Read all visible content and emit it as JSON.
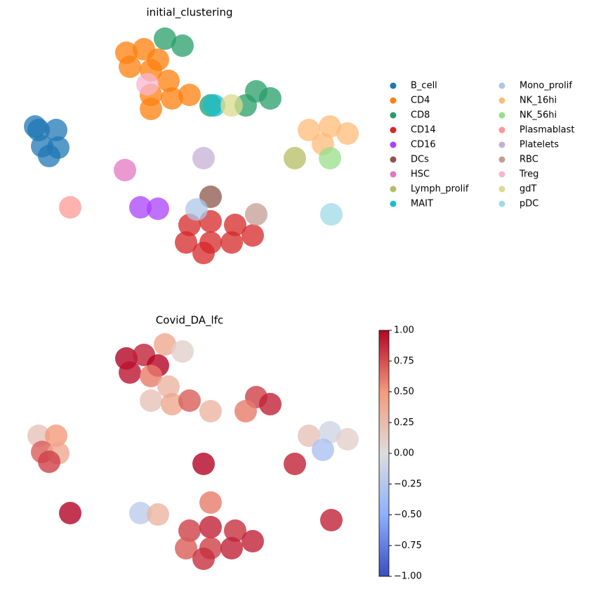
{
  "chart_data": [
    {
      "type": "scatter",
      "title": "initial_clustering",
      "xlim": [
        0,
        500
      ],
      "ylim": [
        0,
        345
      ],
      "legend": "right",
      "series": [
        {
          "name": "B_cell",
          "color": "#1f77b4",
          "x": [
            35,
            60,
            40,
            63,
            50,
            30
          ],
          "y": [
            195,
            195,
            172,
            170,
            158,
            200
          ]
        },
        {
          "name": "CD4",
          "color": "#ff7f0e",
          "x": [
            160,
            185,
            205,
            165,
            195,
            220,
            195,
            225,
            195,
            250
          ],
          "y": [
            305,
            310,
            295,
            285,
            280,
            265,
            245,
            240,
            225,
            245
          ]
        },
        {
          "name": "CD8",
          "color": "#279e68",
          "x": [
            215,
            240,
            345,
            365,
            330,
            280
          ],
          "y": [
            325,
            315,
            250,
            240,
            230,
            230
          ]
        },
        {
          "name": "CD14",
          "color": "#d62728",
          "x": [
            250,
            280,
            315,
            340,
            245,
            280,
            310,
            270
          ],
          "y": [
            60,
            65,
            60,
            45,
            35,
            35,
            35,
            20
          ]
        },
        {
          "name": "CD16",
          "color": "#aa40fc",
          "x": [
            180,
            205
          ],
          "y": [
            85,
            83
          ]
        },
        {
          "name": "DCs",
          "color": "#8c564b",
          "x": [
            280
          ],
          "y": [
            100
          ]
        },
        {
          "name": "HSC",
          "color": "#e377c2",
          "x": [
            158
          ],
          "y": [
            138
          ]
        },
        {
          "name": "Lymph_prolif",
          "color": "#b5bd61",
          "x": [
            400
          ],
          "y": [
            155
          ]
        },
        {
          "name": "MAIT",
          "color": "#17becf",
          "x": [
            285
          ],
          "y": [
            230
          ]
        },
        {
          "name": "Mono_prolif",
          "color": "#aec7e8",
          "x": [
            260
          ],
          "y": [
            82
          ]
        },
        {
          "name": "NK_16hi",
          "color": "#ffbb78",
          "x": [
            420,
            450,
            475,
            440
          ],
          "y": [
            195,
            200,
            190,
            175
          ]
        },
        {
          "name": "NK_56hi",
          "color": "#98df8a",
          "x": [
            450
          ],
          "y": [
            155
          ]
        },
        {
          "name": "Plasmablast",
          "color": "#ff9896",
          "x": [
            80
          ],
          "y": [
            85
          ]
        },
        {
          "name": "Platelets",
          "color": "#c5b0d5",
          "x": [
            270
          ],
          "y": [
            155
          ]
        },
        {
          "name": "RBC",
          "color": "#c49c94",
          "x": [
            345
          ],
          "y": [
            75
          ]
        },
        {
          "name": "Treg",
          "color": "#f7b6d2",
          "x": [
            190
          ],
          "y": [
            260
          ]
        },
        {
          "name": "gdT",
          "color": "#dbdb8d",
          "x": [
            310
          ],
          "y": [
            230
          ]
        },
        {
          "name": "pDC",
          "color": "#9edae5",
          "x": [
            452
          ],
          "y": [
            75
          ]
        }
      ]
    },
    {
      "type": "colorscatter",
      "title": "Covid_DA_lfc",
      "xlim": [
        0,
        500
      ],
      "ylim": [
        0,
        345
      ],
      "colormap": "coolwarm",
      "x": [
        35,
        60,
        40,
        63,
        50,
        160,
        185,
        205,
        165,
        195,
        220,
        195,
        225,
        250,
        215,
        240,
        345,
        365,
        330,
        280,
        250,
        280,
        315,
        340,
        245,
        280,
        310,
        270,
        180,
        205,
        280,
        420,
        450,
        475,
        440,
        80,
        270,
        400,
        452
      ],
      "y": [
        195,
        195,
        172,
        170,
        158,
        305,
        310,
        295,
        285,
        280,
        265,
        245,
        240,
        245,
        325,
        315,
        250,
        240,
        230,
        230,
        60,
        65,
        60,
        45,
        35,
        35,
        35,
        20,
        85,
        83,
        100,
        195,
        200,
        190,
        175,
        85,
        155,
        155,
        75
      ],
      "values": [
        0.2,
        0.5,
        0.7,
        0.4,
        0.8,
        1,
        0.9,
        1,
        0.95,
        0.6,
        0.3,
        0.2,
        0.4,
        0.7,
        0.4,
        0.1,
        0.8,
        0.9,
        0.6,
        0.3,
        0.8,
        0.9,
        0.85,
        0.9,
        0.7,
        0.8,
        0.9,
        0.85,
        -0.2,
        0.3,
        0.6,
        0.2,
        -0.1,
        0.1,
        -0.3,
        1,
        1,
        0.9,
        0.9
      ],
      "clim": [
        -1,
        1
      ],
      "cticks": [
        {
          "value": 1,
          "label": "1.00"
        },
        {
          "value": 0.75,
          "label": "0.75"
        },
        {
          "value": 0.5,
          "label": "0.50"
        },
        {
          "value": 0.25,
          "label": "0.25"
        },
        {
          "value": 0,
          "label": "0.00"
        },
        {
          "value": -0.25,
          "label": "−0.25"
        },
        {
          "value": -0.5,
          "label": "−0.50"
        },
        {
          "value": -0.75,
          "label": "−0.75"
        },
        {
          "value": -1,
          "label": "−1.00"
        }
      ]
    }
  ]
}
